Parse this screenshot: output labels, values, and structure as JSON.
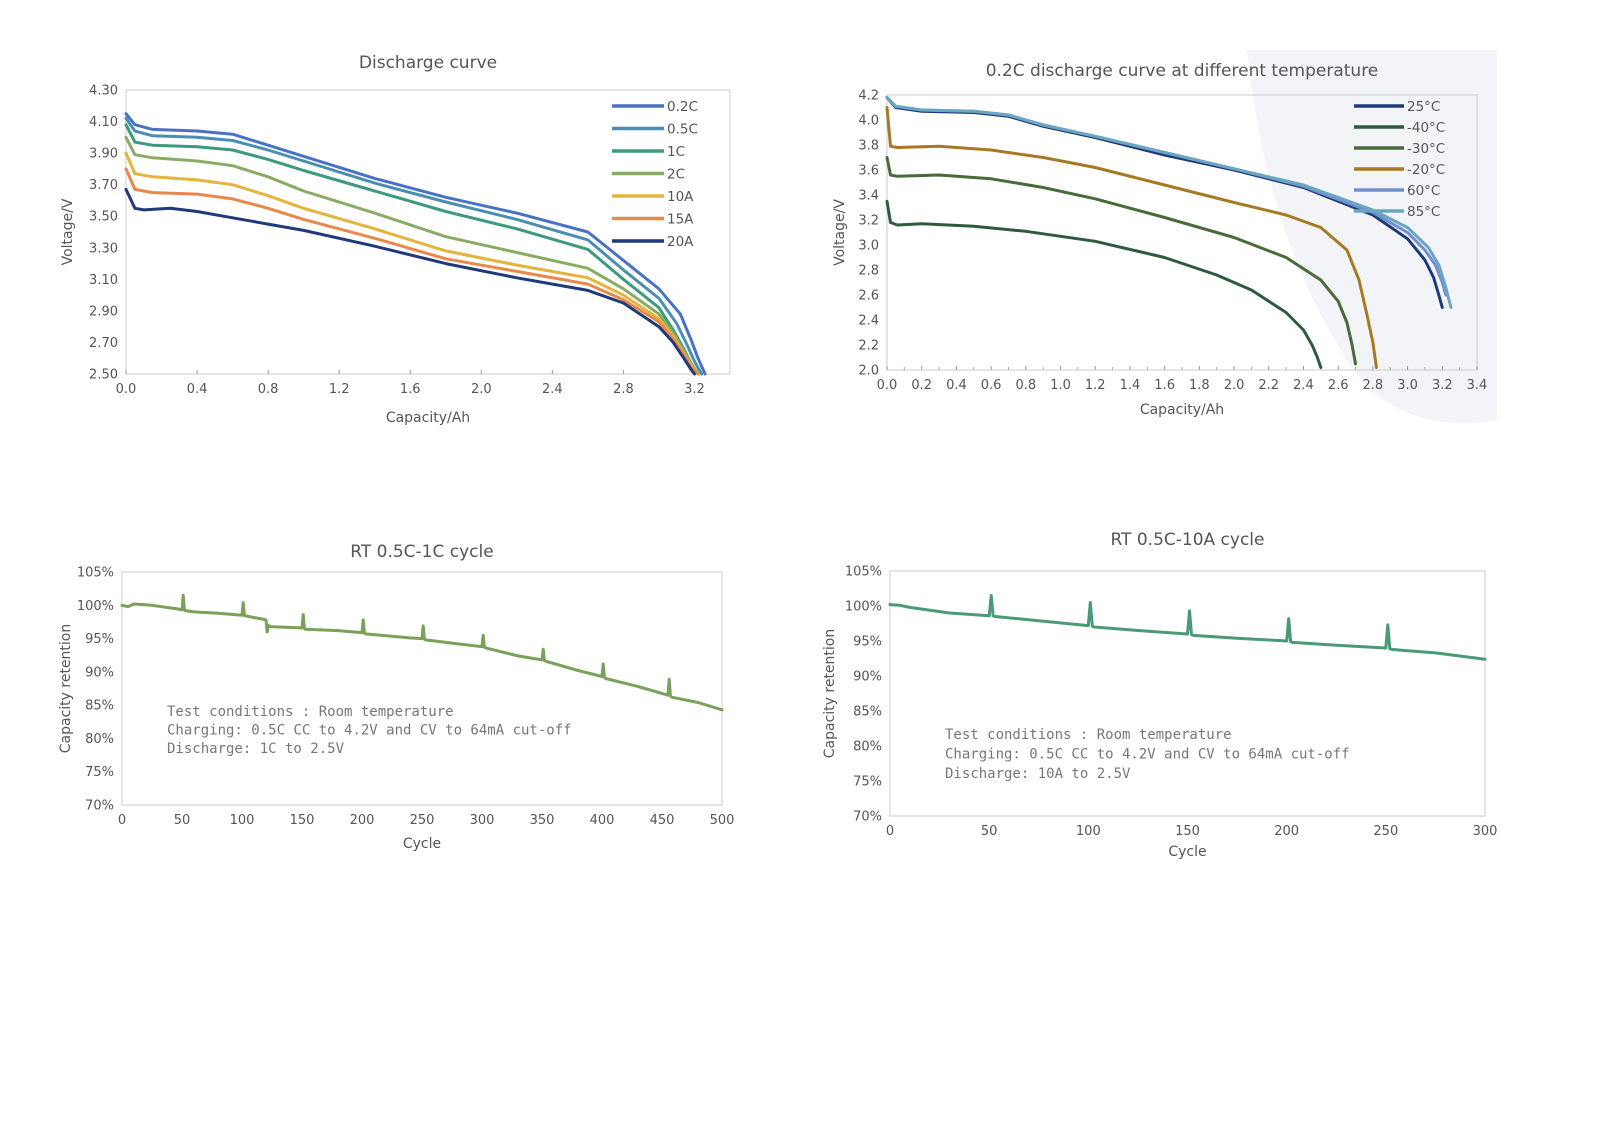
{
  "chart_data": [
    {
      "type": "line",
      "title": "Discharge curve",
      "xlabel": "Capacity/Ah",
      "ylabel": "Voltage/V",
      "xlim": [
        0.0,
        3.4
      ],
      "ylim": [
        2.5,
        4.3
      ],
      "xticks": [
        "0.0",
        "0.4",
        "0.8",
        "1.2",
        "1.6",
        "2.0",
        "2.4",
        "2.8",
        "3.2"
      ],
      "yticks": [
        "2.50",
        "2.70",
        "2.90",
        "3.10",
        "3.30",
        "3.50",
        "3.70",
        "3.90",
        "4.10",
        "4.30"
      ],
      "legend_position": "top-right",
      "series": [
        {
          "name": "0.2C",
          "color": "#4a72c4",
          "x": [
            0,
            0.05,
            0.15,
            0.4,
            0.6,
            0.8,
            1.0,
            1.4,
            1.8,
            2.2,
            2.6,
            2.8,
            3.0,
            3.12,
            3.18,
            3.22,
            3.26
          ],
          "y": [
            4.15,
            4.08,
            4.05,
            4.04,
            4.02,
            3.95,
            3.88,
            3.74,
            3.62,
            3.52,
            3.4,
            3.22,
            3.04,
            2.88,
            2.72,
            2.6,
            2.5
          ]
        },
        {
          "name": "0.5C",
          "color": "#4a8fb2",
          "x": [
            0,
            0.05,
            0.15,
            0.4,
            0.6,
            0.8,
            1.0,
            1.4,
            1.8,
            2.2,
            2.6,
            2.8,
            3.0,
            3.1,
            3.16,
            3.2,
            3.24
          ],
          "y": [
            4.12,
            4.04,
            4.01,
            4.0,
            3.98,
            3.92,
            3.85,
            3.71,
            3.59,
            3.48,
            3.35,
            3.16,
            2.98,
            2.82,
            2.68,
            2.58,
            2.5
          ]
        },
        {
          "name": "1C",
          "color": "#3d9a80",
          "x": [
            0,
            0.05,
            0.15,
            0.4,
            0.6,
            0.8,
            1.0,
            1.4,
            1.8,
            2.2,
            2.6,
            2.8,
            3.0,
            3.08,
            3.14,
            3.18,
            3.22
          ],
          "y": [
            4.08,
            3.97,
            3.95,
            3.94,
            3.92,
            3.86,
            3.79,
            3.66,
            3.53,
            3.42,
            3.29,
            3.1,
            2.92,
            2.78,
            2.66,
            2.57,
            2.5
          ]
        },
        {
          "name": "2C",
          "color": "#8aab63",
          "x": [
            0,
            0.05,
            0.15,
            0.4,
            0.6,
            0.8,
            1.0,
            1.4,
            1.8,
            2.2,
            2.6,
            2.8,
            3.0,
            3.08,
            3.14,
            3.18,
            3.22
          ],
          "y": [
            4.0,
            3.89,
            3.87,
            3.85,
            3.82,
            3.75,
            3.66,
            3.52,
            3.37,
            3.27,
            3.17,
            3.04,
            2.88,
            2.76,
            2.65,
            2.57,
            2.5
          ]
        },
        {
          "name": "10A",
          "color": "#e4b43c",
          "x": [
            0,
            0.05,
            0.15,
            0.4,
            0.6,
            0.8,
            1.0,
            1.4,
            1.8,
            2.2,
            2.6,
            2.8,
            3.0,
            3.08,
            3.14,
            3.18,
            3.22
          ],
          "y": [
            3.9,
            3.77,
            3.75,
            3.73,
            3.7,
            3.63,
            3.55,
            3.42,
            3.28,
            3.19,
            3.11,
            3.0,
            2.85,
            2.74,
            2.63,
            2.56,
            2.5
          ]
        },
        {
          "name": "15A",
          "color": "#e8894a",
          "x": [
            0,
            0.05,
            0.15,
            0.4,
            0.6,
            0.8,
            1.0,
            1.4,
            1.8,
            2.2,
            2.6,
            2.8,
            3.0,
            3.08,
            3.14,
            3.18,
            3.22
          ],
          "y": [
            3.8,
            3.67,
            3.65,
            3.64,
            3.61,
            3.55,
            3.48,
            3.36,
            3.23,
            3.15,
            3.07,
            2.97,
            2.83,
            2.72,
            2.62,
            2.55,
            2.5
          ]
        },
        {
          "name": "20A",
          "color": "#1f3a7a",
          "x": [
            0,
            0.05,
            0.1,
            0.25,
            0.4,
            0.6,
            0.8,
            1.0,
            1.4,
            1.8,
            2.2,
            2.6,
            2.8,
            3.0,
            3.08,
            3.14,
            3.18,
            3.2
          ],
          "y": [
            3.67,
            3.55,
            3.54,
            3.55,
            3.53,
            3.49,
            3.45,
            3.41,
            3.31,
            3.2,
            3.11,
            3.03,
            2.95,
            2.8,
            2.7,
            2.6,
            2.53,
            2.5
          ]
        }
      ]
    },
    {
      "type": "line",
      "title": "0.2C  discharge curve at different temperature",
      "xlabel": "Capacity/Ah",
      "ylabel": "Voltage/V",
      "xlim": [
        0.0,
        3.4
      ],
      "ylim": [
        2.0,
        4.2
      ],
      "xticks": [
        "0.0",
        "0.2",
        "0.4",
        "0.6",
        "0.8",
        "1.0",
        "1.2",
        "1.4",
        "1.6",
        "1.8",
        "2.0",
        "2.2",
        "2.4",
        "2.6",
        "2.8",
        "3.0",
        "3.2",
        "3.4"
      ],
      "yticks": [
        "2.0",
        "2.2",
        "2.4",
        "2.6",
        "2.8",
        "3.0",
        "3.2",
        "3.4",
        "3.6",
        "3.8",
        "4.0",
        "4.2"
      ],
      "legend_position": "top-right",
      "series": [
        {
          "name": "25°C",
          "color": "#1f3a7a",
          "x": [
            0,
            0.05,
            0.2,
            0.5,
            0.7,
            0.9,
            1.2,
            1.6,
            2.0,
            2.4,
            2.8,
            3.0,
            3.1,
            3.15,
            3.18,
            3.2
          ],
          "y": [
            4.18,
            4.1,
            4.07,
            4.06,
            4.03,
            3.95,
            3.86,
            3.72,
            3.6,
            3.46,
            3.24,
            3.05,
            2.88,
            2.74,
            2.6,
            2.5
          ]
        },
        {
          "name": "-40°C",
          "color": "#2e5b3f",
          "x": [
            0,
            0.02,
            0.06,
            0.2,
            0.5,
            0.8,
            1.2,
            1.6,
            1.9,
            2.1,
            2.3,
            2.4,
            2.45,
            2.48,
            2.5
          ],
          "y": [
            3.35,
            3.18,
            3.16,
            3.17,
            3.15,
            3.11,
            3.03,
            2.9,
            2.76,
            2.64,
            2.46,
            2.32,
            2.2,
            2.1,
            2.02
          ]
        },
        {
          "name": "-30°C",
          "color": "#4a6a3a",
          "x": [
            0,
            0.02,
            0.06,
            0.3,
            0.6,
            0.9,
            1.2,
            1.6,
            2.0,
            2.3,
            2.5,
            2.6,
            2.65,
            2.68,
            2.7
          ],
          "y": [
            3.7,
            3.56,
            3.55,
            3.56,
            3.53,
            3.46,
            3.37,
            3.22,
            3.06,
            2.9,
            2.72,
            2.55,
            2.38,
            2.2,
            2.05
          ]
        },
        {
          "name": "-20°C",
          "color": "#a67a22",
          "x": [
            0,
            0.02,
            0.06,
            0.3,
            0.6,
            0.9,
            1.2,
            1.6,
            2.0,
            2.3,
            2.5,
            2.65,
            2.72,
            2.76,
            2.8,
            2.82
          ],
          "y": [
            4.1,
            3.79,
            3.78,
            3.79,
            3.76,
            3.7,
            3.62,
            3.48,
            3.34,
            3.24,
            3.14,
            2.96,
            2.72,
            2.48,
            2.22,
            2.02
          ]
        },
        {
          "name": "60°C",
          "color": "#6f8fd0",
          "x": [
            0,
            0.05,
            0.2,
            0.5,
            0.7,
            0.9,
            1.2,
            1.6,
            2.0,
            2.4,
            2.8,
            3.0,
            3.1,
            3.16,
            3.2,
            3.22
          ],
          "y": [
            4.18,
            4.11,
            4.08,
            4.07,
            4.04,
            3.96,
            3.87,
            3.74,
            3.61,
            3.47,
            3.26,
            3.1,
            2.96,
            2.84,
            2.7,
            2.6
          ]
        },
        {
          "name": "85°C",
          "color": "#6aa6c0",
          "x": [
            0,
            0.05,
            0.2,
            0.5,
            0.7,
            0.9,
            1.2,
            1.6,
            2.0,
            2.4,
            2.8,
            3.0,
            3.12,
            3.18,
            3.22,
            3.25
          ],
          "y": [
            4.18,
            4.11,
            4.08,
            4.07,
            4.04,
            3.96,
            3.87,
            3.74,
            3.61,
            3.48,
            3.28,
            3.14,
            2.98,
            2.84,
            2.66,
            2.5
          ]
        }
      ]
    },
    {
      "type": "line",
      "title": "RT 0.5C-1C cycle",
      "xlabel": "Cycle",
      "ylabel": "Capacity retention",
      "xlim": [
        0,
        500
      ],
      "ylim": [
        70,
        105
      ],
      "xticks": [
        "0",
        "50",
        "100",
        "150",
        "200",
        "250",
        "300",
        "350",
        "400",
        "450",
        "500"
      ],
      "yticks": [
        "70%",
        "75%",
        "80%",
        "85%",
        "90%",
        "95%",
        "100%",
        "105%"
      ],
      "color": "#7aa05a",
      "series": [
        {
          "name": "",
          "x": [
            0,
            5,
            10,
            25,
            40,
            45,
            50,
            51,
            52,
            53,
            60,
            80,
            100,
            101,
            102,
            103,
            115,
            120,
            121,
            122,
            123,
            150,
            151,
            152,
            153,
            180,
            200,
            201,
            202,
            203,
            240,
            250,
            251,
            252,
            253,
            280,
            300,
            301,
            302,
            303,
            330,
            350,
            351,
            352,
            353,
            380,
            400,
            401,
            402,
            403,
            430,
            455,
            456,
            457,
            458,
            480,
            500
          ],
          "y": [
            100,
            99.8,
            100.2,
            100,
            99.6,
            99.5,
            99.3,
            101.5,
            99.3,
            99.2,
            99.0,
            98.8,
            98.5,
            100.4,
            98.5,
            98.4,
            98.0,
            97.8,
            96.0,
            97.0,
            96.8,
            96.6,
            98.6,
            96.5,
            96.4,
            96.2,
            95.9,
            97.8,
            95.8,
            95.7,
            95.1,
            95.0,
            96.9,
            94.9,
            94.8,
            94.2,
            93.8,
            95.5,
            93.7,
            93.6,
            92.4,
            91.8,
            93.4,
            91.7,
            91.6,
            90.2,
            89.3,
            91.2,
            89.2,
            89.0,
            87.8,
            86.5,
            88.9,
            86.4,
            86.2,
            85.4,
            84.3
          ]
        }
      ],
      "annotations": [
        "Test conditions : Room temperature",
        "Charging: 0.5C CC to 4.2V and CV to 64mA cut-off",
        "Discharge: 1C to 2.5V"
      ]
    },
    {
      "type": "line",
      "title": "RT 0.5C-10A  cycle",
      "xlabel": "Cycle",
      "ylabel": "Capacity retention",
      "xlim": [
        0,
        300
      ],
      "ylim": [
        70,
        105
      ],
      "xticks": [
        "0",
        "50",
        "100",
        "150",
        "200",
        "250",
        "300"
      ],
      "yticks": [
        "70%",
        "75%",
        "80%",
        "85%",
        "90%",
        "95%",
        "100%",
        "105%"
      ],
      "color": "#4a9a78",
      "series": [
        {
          "name": "",
          "x": [
            0,
            5,
            10,
            30,
            50,
            51,
            52,
            53,
            75,
            100,
            101,
            102,
            103,
            125,
            150,
            151,
            152,
            153,
            175,
            200,
            201,
            202,
            203,
            225,
            250,
            251,
            252,
            253,
            275,
            300
          ],
          "y": [
            100.2,
            100.1,
            99.8,
            99.0,
            98.6,
            101.5,
            98.6,
            98.5,
            97.9,
            97.2,
            100.5,
            97.1,
            97.0,
            96.5,
            96.0,
            99.3,
            95.9,
            95.8,
            95.4,
            95.0,
            98.2,
            94.9,
            94.8,
            94.4,
            94.0,
            97.3,
            93.9,
            93.8,
            93.3,
            92.4
          ]
        }
      ],
      "annotations": [
        "Test conditions : Room temperature",
        "Charging: 0.5C CC to 4.2V and CV to 64mA cut-off",
        "Discharge: 10A to 2.5V"
      ]
    }
  ]
}
